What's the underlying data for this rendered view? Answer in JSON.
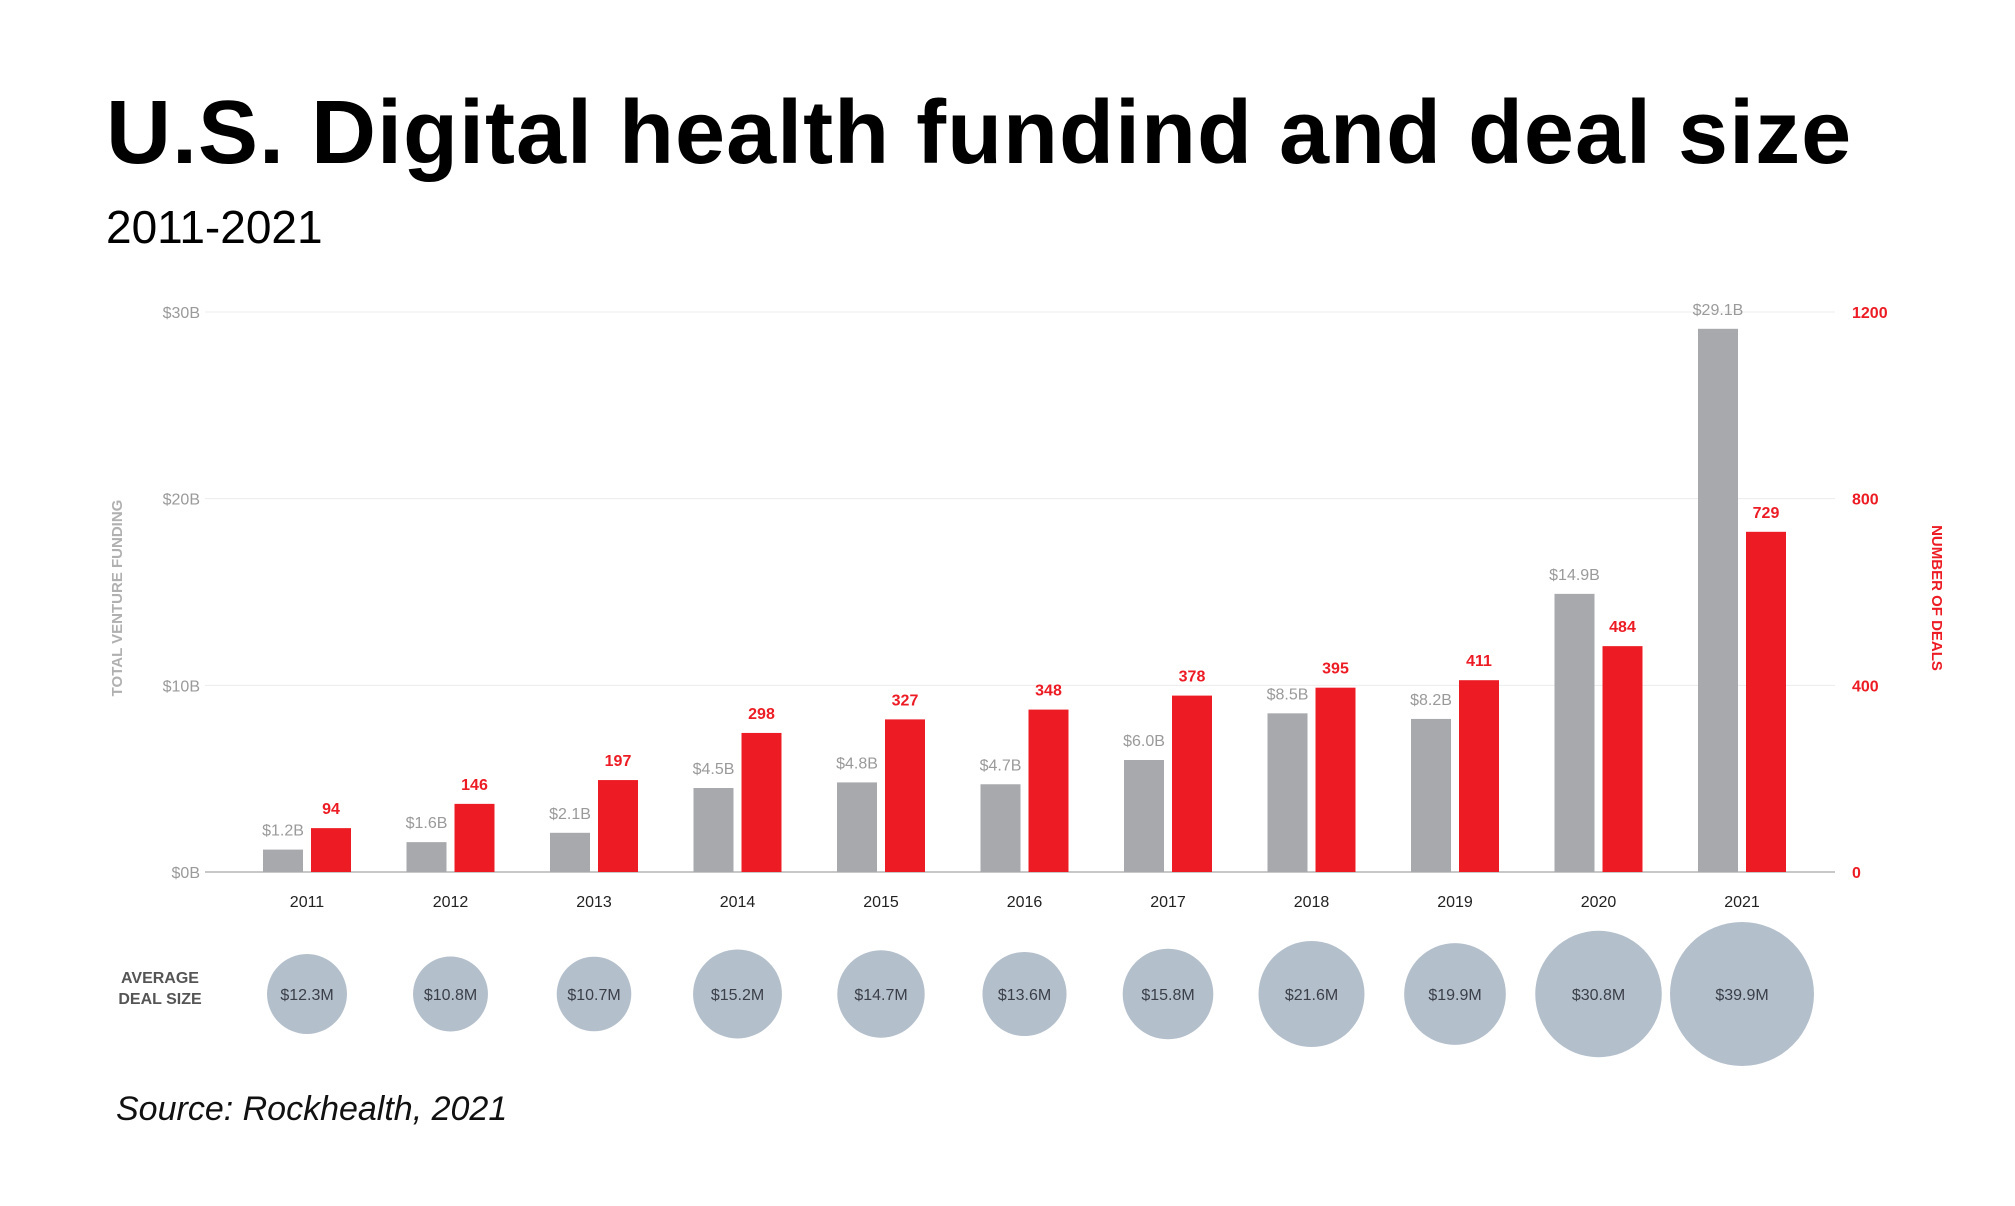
{
  "title": "U.S. Digital health fundind and deal size",
  "subtitle": "2011-2021",
  "source": "Source: Rockhealth, 2021",
  "avg_deal_label": "AVERAGE\nDEAL SIZE",
  "colors": {
    "funding": "#a7a9ac",
    "deals": "#ed1c24",
    "bubble": "#b4bfcc",
    "axis_text": "#9a9a9a"
  },
  "chart_data": {
    "type": "bar",
    "categories": [
      "2011",
      "2012",
      "2013",
      "2014",
      "2015",
      "2016",
      "2017",
      "2018",
      "2019",
      "2020",
      "2021"
    ],
    "series": [
      {
        "axis": "left",
        "values": [
          1.2,
          1.6,
          2.1,
          4.5,
          4.8,
          4.7,
          6.0,
          8.5,
          8.2,
          14.9,
          29.1
        ],
        "labels": [
          "$1.2B",
          "$1.6B",
          "$2.1B",
          "$4.5B",
          "$4.8B",
          "$4.7B",
          "$6.0B",
          "$8.5B",
          "$8.2B",
          "$14.9B",
          "$29.1B"
        ]
      },
      {
        "axis": "right",
        "values": [
          94,
          146,
          197,
          298,
          327,
          348,
          378,
          395,
          411,
          484,
          729
        ],
        "labels": [
          "94",
          "146",
          "197",
          "298",
          "327",
          "348",
          "378",
          "395",
          "411",
          "484",
          "729"
        ]
      }
    ],
    "average_deal_size": {
      "values": [
        12.3,
        10.8,
        10.7,
        15.2,
        14.7,
        13.6,
        15.8,
        21.6,
        19.9,
        30.8,
        39.9
      ],
      "labels": [
        "$12.3M",
        "$10.8M",
        "$10.7M",
        "$15.2M",
        "$14.7M",
        "$13.6M",
        "$15.8M",
        "$21.6M",
        "$19.9M",
        "$30.8M",
        "$39.9M"
      ]
    },
    "ylabel": "TOTAL VENTURE FUNDING",
    "y2label": "NUMBER OF DEALS",
    "ylim": [
      0,
      30
    ],
    "y2lim": [
      0,
      1200
    ],
    "yticks": [
      "$0B",
      "$10B",
      "$20B",
      "$30B"
    ],
    "y2ticks": [
      "0",
      "400",
      "800",
      "1200"
    ],
    "grid": true
  }
}
